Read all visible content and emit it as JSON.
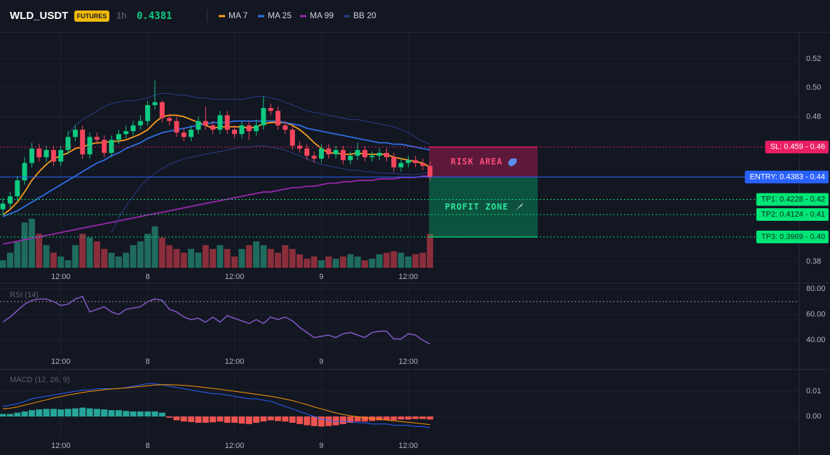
{
  "chart_data": [
    {
      "type": "candlestick",
      "title": "WLD_USDT",
      "badge": "FUTURES",
      "interval": "1h",
      "last_price": 0.4381,
      "up_color": "#0ecb81",
      "down_color": "#f6465d",
      "volume_up_color": "#1f6b5d",
      "volume_down_color": "#8a2e3b",
      "xlim": [
        -0.4,
        110
      ],
      "ylim": [
        0.3756,
        0.5364
      ],
      "xticks": [
        {
          "value": 8,
          "label": "12:00"
        },
        {
          "value": 20,
          "label": "8"
        },
        {
          "value": 32,
          "label": "12:00"
        },
        {
          "value": 44,
          "label": "9"
        },
        {
          "value": 56,
          "label": "12:00"
        }
      ],
      "yticks": [
        0.38,
        0.48,
        {
          "value": 0.5,
          "label": "0.50"
        },
        0.52
      ],
      "open": [
        0.416,
        0.42,
        0.425,
        0.436,
        0.448,
        0.458,
        0.452,
        0.457,
        0.449,
        0.457,
        0.466,
        0.471,
        0.454,
        0.466,
        0.464,
        0.455,
        0.464,
        0.468,
        0.47,
        0.474,
        0.477,
        0.488,
        0.49,
        0.479,
        0.477,
        0.469,
        0.466,
        0.471,
        0.477,
        0.474,
        0.471,
        0.481,
        0.471,
        0.468,
        0.474,
        0.47,
        0.474,
        0.486,
        0.484,
        0.474,
        0.471,
        0.46,
        0.458,
        0.453,
        0.451,
        0.458,
        0.454,
        0.457,
        0.45,
        0.453,
        0.457,
        0.452,
        0.453,
        0.455,
        0.452,
        0.445,
        0.448,
        0.45,
        0.448,
        0.446
      ],
      "high": [
        0.424,
        0.428,
        0.439,
        0.452,
        0.462,
        0.461,
        0.46,
        0.46,
        0.46,
        0.47,
        0.474,
        0.474,
        0.469,
        0.469,
        0.467,
        0.467,
        0.471,
        0.474,
        0.477,
        0.481,
        0.491,
        0.505,
        0.491,
        0.482,
        0.48,
        0.472,
        0.474,
        0.48,
        0.487,
        0.477,
        0.484,
        0.484,
        0.474,
        0.477,
        0.477,
        0.478,
        0.494,
        0.489,
        0.487,
        0.477,
        0.474,
        0.463,
        0.461,
        0.456,
        0.461,
        0.461,
        0.46,
        0.46,
        0.456,
        0.462,
        0.46,
        0.456,
        0.458,
        0.458,
        0.455,
        0.451,
        0.453,
        0.453,
        0.451,
        0.449
      ],
      "low": [
        0.412,
        0.417,
        0.422,
        0.433,
        0.445,
        0.449,
        0.449,
        0.446,
        0.446,
        0.454,
        0.463,
        0.451,
        0.451,
        0.461,
        0.452,
        0.452,
        0.461,
        0.465,
        0.467,
        0.471,
        0.474,
        0.485,
        0.476,
        0.474,
        0.466,
        0.463,
        0.463,
        0.468,
        0.471,
        0.468,
        0.468,
        0.468,
        0.465,
        0.465,
        0.464,
        0.467,
        0.471,
        0.481,
        0.471,
        0.468,
        0.457,
        0.455,
        0.45,
        0.448,
        0.448,
        0.451,
        0.451,
        0.447,
        0.447,
        0.45,
        0.449,
        0.449,
        0.45,
        0.449,
        0.442,
        0.442,
        0.445,
        0.445,
        0.443,
        0.436
      ],
      "close": [
        0.42,
        0.425,
        0.436,
        0.448,
        0.458,
        0.452,
        0.457,
        0.449,
        0.457,
        0.466,
        0.471,
        0.454,
        0.466,
        0.464,
        0.455,
        0.464,
        0.468,
        0.47,
        0.474,
        0.477,
        0.488,
        0.49,
        0.479,
        0.477,
        0.469,
        0.466,
        0.471,
        0.477,
        0.474,
        0.471,
        0.481,
        0.471,
        0.468,
        0.474,
        0.47,
        0.474,
        0.486,
        0.484,
        0.474,
        0.471,
        0.46,
        0.458,
        0.453,
        0.451,
        0.458,
        0.454,
        0.457,
        0.45,
        0.453,
        0.457,
        0.452,
        0.453,
        0.455,
        0.452,
        0.445,
        0.448,
        0.45,
        0.448,
        0.446,
        0.438
      ],
      "volume": [
        10,
        20,
        35,
        60,
        65,
        45,
        30,
        20,
        15,
        10,
        30,
        45,
        40,
        35,
        25,
        20,
        15,
        20,
        30,
        35,
        45,
        55,
        40,
        30,
        25,
        20,
        25,
        20,
        30,
        25,
        30,
        25,
        15,
        25,
        30,
        35,
        30,
        25,
        20,
        30,
        25,
        18,
        12,
        15,
        10,
        15,
        12,
        15,
        18,
        15,
        10,
        12,
        18,
        20,
        22,
        20,
        15,
        18,
        20,
        45
      ],
      "series": [
        {
          "name": "MA 7",
          "color": "#ff9f1c",
          "values": [
            0.412,
            0.416,
            0.421,
            0.428,
            0.436,
            0.442,
            0.447,
            0.451,
            0.453,
            0.455,
            0.458,
            0.459,
            0.461,
            0.462,
            0.462,
            0.463,
            0.463,
            0.464,
            0.466,
            0.468,
            0.471,
            0.476,
            0.48,
            0.481,
            0.481,
            0.48,
            0.478,
            0.476,
            0.474,
            0.472,
            0.473,
            0.473,
            0.473,
            0.473,
            0.472,
            0.473,
            0.475,
            0.476,
            0.476,
            0.476,
            0.474,
            0.471,
            0.467,
            0.462,
            0.458,
            0.455,
            0.455,
            0.454,
            0.454,
            0.455,
            0.454,
            0.454,
            0.454,
            0.454,
            0.452,
            0.451,
            0.45,
            0.449,
            0.448,
            0.445
          ]
        },
        {
          "name": "MA 25",
          "color": "#2f6fe8",
          "values": [
            0.411,
            0.413,
            0.415,
            0.418,
            0.421,
            0.424,
            0.427,
            0.43,
            0.433,
            0.436,
            0.439,
            0.442,
            0.445,
            0.448,
            0.45,
            0.453,
            0.455,
            0.458,
            0.46,
            0.462,
            0.465,
            0.467,
            0.469,
            0.47,
            0.471,
            0.472,
            0.473,
            0.474,
            0.475,
            0.476,
            0.476,
            0.476,
            0.477,
            0.477,
            0.477,
            0.477,
            0.477,
            0.477,
            0.477,
            0.476,
            0.475,
            0.474,
            0.472,
            0.471,
            0.47,
            0.469,
            0.468,
            0.467,
            0.466,
            0.465,
            0.464,
            0.463,
            0.462,
            0.462,
            0.461,
            0.461,
            0.46,
            0.459,
            0.458,
            0.457
          ]
        },
        {
          "name": "MA 99",
          "color": "#9c27b0",
          "values": [
            0.392,
            0.393,
            0.394,
            0.395,
            0.396,
            0.397,
            0.398,
            0.399,
            0.4,
            0.401,
            0.402,
            0.403,
            0.404,
            0.405,
            0.406,
            0.407,
            0.408,
            0.409,
            0.41,
            0.411,
            0.412,
            0.413,
            0.414,
            0.415,
            0.416,
            0.417,
            0.418,
            0.419,
            0.42,
            0.421,
            0.422,
            0.423,
            0.424,
            0.425,
            0.426,
            0.427,
            0.428,
            0.428,
            0.429,
            0.43,
            0.431,
            0.431,
            0.432,
            0.432,
            0.433,
            0.434,
            0.434,
            0.435,
            0.435,
            0.436,
            0.436,
            0.436,
            0.437,
            0.437,
            0.437,
            0.438,
            0.438,
            0.438,
            0.439,
            0.439
          ]
        },
        {
          "name": "BB 20",
          "color": "#2a3d8a",
          "values": [
            null,
            null,
            null,
            null,
            null,
            null,
            null,
            null,
            null,
            0.468,
            0.474,
            0.478,
            0.481,
            0.484,
            0.487,
            0.489,
            0.49,
            0.491,
            0.491,
            0.492,
            0.493,
            0.495,
            0.496,
            0.496,
            0.495,
            0.495,
            0.494,
            0.493,
            0.493,
            0.492,
            0.492,
            0.492,
            0.492,
            0.492,
            0.493,
            0.494,
            0.494,
            0.493,
            0.492,
            0.49,
            0.488,
            0.486,
            0.484,
            0.483,
            0.482,
            0.481,
            0.48,
            0.479,
            0.478,
            0.478,
            0.477,
            0.476,
            0.475,
            0.474,
            0.473,
            0.471,
            0.469,
            0.466,
            0.463,
            0.461
          ],
          "lower": [
            null,
            null,
            null,
            null,
            null,
            null,
            null,
            null,
            null,
            null,
            null,
            null,
            null,
            null,
            null,
            0.4,
            0.41,
            0.418,
            0.425,
            0.432,
            0.437,
            0.441,
            0.444,
            0.447,
            0.449,
            0.451,
            0.452,
            0.453,
            0.454,
            0.455,
            0.456,
            0.457,
            0.458,
            0.459,
            0.459,
            0.46,
            0.46,
            0.459,
            0.458,
            0.457,
            0.455,
            0.453,
            0.451,
            0.449,
            0.447,
            0.446,
            0.445,
            0.444,
            0.443,
            0.443,
            0.442,
            0.442,
            0.441,
            0.441,
            0.441,
            0.44,
            0.44,
            0.44,
            0.441,
            0.441
          ]
        }
      ],
      "levels": [
        {
          "label": "SL: 0.459 - 0.46",
          "value": 0.459,
          "color": "#e91e63"
        },
        {
          "label": "ENTRY: 0.4383 - 0.44",
          "value": 0.4383,
          "color": "#2962ff"
        },
        {
          "label": "TP1: 0.4228 - 0.42",
          "value": 0.4228,
          "color": "#00e676"
        },
        {
          "label": "TP2: 0.4124 - 0.41",
          "value": 0.4124,
          "color": "#00e676"
        },
        {
          "label": "TP3: 0.3969 - 0.40",
          "value": 0.3969,
          "color": "#00e676"
        }
      ],
      "zones": [
        {
          "label": "RISK AREA",
          "color": "#e91e63"
        },
        {
          "label": "PROFIT ZONE",
          "color": "#00c076"
        }
      ]
    },
    {
      "type": "line",
      "title": "RSI (14)",
      "color": "#7e57c2",
      "ylim": [
        29.2,
        83.2
      ],
      "yticks": [
        {
          "value": 40,
          "label": "40.00"
        },
        {
          "value": 60,
          "label": "60.00"
        },
        {
          "value": 80,
          "label": "80.00"
        }
      ],
      "hline": 70,
      "values": [
        54,
        58,
        63,
        68,
        71,
        72,
        72,
        70,
        67,
        68,
        72,
        74,
        62,
        64,
        66,
        62,
        60,
        64,
        65,
        66,
        70,
        72,
        71,
        64,
        62,
        58,
        56,
        57,
        54,
        58,
        54,
        59,
        57,
        55,
        53,
        56,
        53,
        58,
        56,
        58,
        55,
        50,
        46,
        42,
        43,
        44,
        42,
        45,
        46,
        44,
        42,
        46,
        47,
        47,
        41,
        41,
        45,
        44,
        40,
        37
      ]
    },
    {
      "type": "macd",
      "title": "MACD (12, 26, 9)",
      "ylim": [
        -0.0086,
        0.0178
      ],
      "yticks": [
        {
          "value": 0,
          "label": "0.00"
        },
        0.01
      ],
      "series": [
        {
          "color": "#2962ff",
          "values": [
            0.004,
            0.0045,
            0.005,
            0.006,
            0.007,
            0.0075,
            0.008,
            0.0085,
            0.009,
            0.0095,
            0.01,
            0.0105,
            0.0105,
            0.011,
            0.011,
            0.011,
            0.011,
            0.0115,
            0.012,
            0.0125,
            0.013,
            0.013,
            0.0125,
            0.012,
            0.0115,
            0.011,
            0.0105,
            0.01,
            0.0095,
            0.009,
            0.009,
            0.0085,
            0.008,
            0.0075,
            0.007,
            0.007,
            0.0065,
            0.006,
            0.005,
            0.004,
            0.003,
            0.002,
            0.001,
            0,
            -0.001,
            -0.0015,
            -0.002,
            -0.002,
            -0.002,
            -0.0025,
            -0.0025,
            -0.003,
            -0.003,
            -0.003,
            -0.0035,
            -0.0035,
            -0.0035,
            -0.004,
            -0.004,
            -0.0045
          ]
        },
        {
          "color": "#ff9800",
          "values": [
            0.003,
            0.0033,
            0.0038,
            0.0045,
            0.0052,
            0.0059,
            0.0066,
            0.0073,
            0.0079,
            0.0085,
            0.009,
            0.0095,
            0.0099,
            0.0103,
            0.0106,
            0.0109,
            0.0111,
            0.0113,
            0.0116,
            0.0119,
            0.0122,
            0.0125,
            0.0126,
            0.0126,
            0.0125,
            0.0123,
            0.0121,
            0.0118,
            0.0115,
            0.0111,
            0.0108,
            0.0104,
            0.01,
            0.0096,
            0.0092,
            0.0088,
            0.0084,
            0.008,
            0.0075,
            0.0069,
            0.0063,
            0.0055,
            0.0047,
            0.0038,
            0.003,
            0.0022,
            0.0014,
            0.0008,
            0.0003,
            -0.0001,
            -0.0005,
            -0.0008,
            -0.0011,
            -0.0014,
            -0.0017,
            -0.002,
            -0.0023,
            -0.0026,
            -0.0029,
            -0.0032
          ]
        }
      ],
      "histogram": {
        "up_color": "#26a69a",
        "down_color": "#ef5350",
        "values": [
          0.001,
          0.001,
          0.0015,
          0.002,
          0.0025,
          0.0028,
          0.003,
          0.003,
          0.0028,
          0.003,
          0.0032,
          0.0035,
          0.0032,
          0.003,
          0.0028,
          0.0025,
          0.0025,
          0.0022,
          0.002,
          0.002,
          0.002,
          0.002,
          0.0015,
          -0.0005,
          -0.0015,
          -0.002,
          -0.0022,
          -0.0025,
          -0.0025,
          -0.0023,
          -0.002,
          -0.0025,
          -0.0025,
          -0.0028,
          -0.003,
          -0.0025,
          -0.002,
          -0.0015,
          -0.0018,
          -0.002,
          -0.0025,
          -0.003,
          -0.0035,
          -0.0038,
          -0.004,
          -0.0038,
          -0.0035,
          -0.003,
          -0.0025,
          -0.002,
          -0.002,
          -0.0018,
          -0.0015,
          -0.0015,
          -0.0015,
          -0.0012,
          -0.0012,
          -0.001,
          -0.001,
          -0.0012
        ]
      }
    }
  ]
}
